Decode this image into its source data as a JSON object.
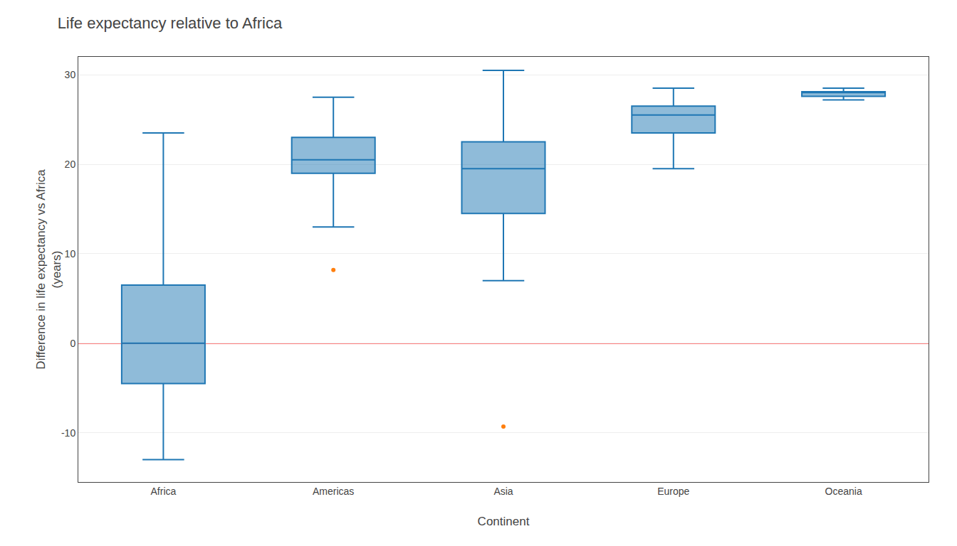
{
  "chart_data": {
    "type": "box",
    "title": "Life expectancy relative to Africa",
    "xlabel": "Continent",
    "ylabel": "Difference in life expectancy vs Africa\n(years)",
    "categories": [
      "Africa",
      "Americas",
      "Asia",
      "Europe",
      "Oceania"
    ],
    "whislo": [
      -13.0,
      13.0,
      7.0,
      19.5,
      27.2
    ],
    "q1": [
      -4.5,
      19.0,
      14.5,
      23.5,
      27.6
    ],
    "med": [
      0.0,
      20.5,
      19.5,
      25.5,
      28.0
    ],
    "q3": [
      6.5,
      23.0,
      22.5,
      26.5,
      28.1
    ],
    "whishi": [
      23.5,
      27.5,
      30.5,
      28.5,
      28.5
    ],
    "fliers": [
      [],
      [
        8.2
      ],
      [
        -9.3
      ],
      [],
      []
    ],
    "ref_line": {
      "value": 0,
      "color": "#ff0000"
    },
    "ylim": [
      -15.5,
      32
    ],
    "yticks": [
      -10,
      0,
      10,
      20,
      30
    ],
    "grid": true
  }
}
